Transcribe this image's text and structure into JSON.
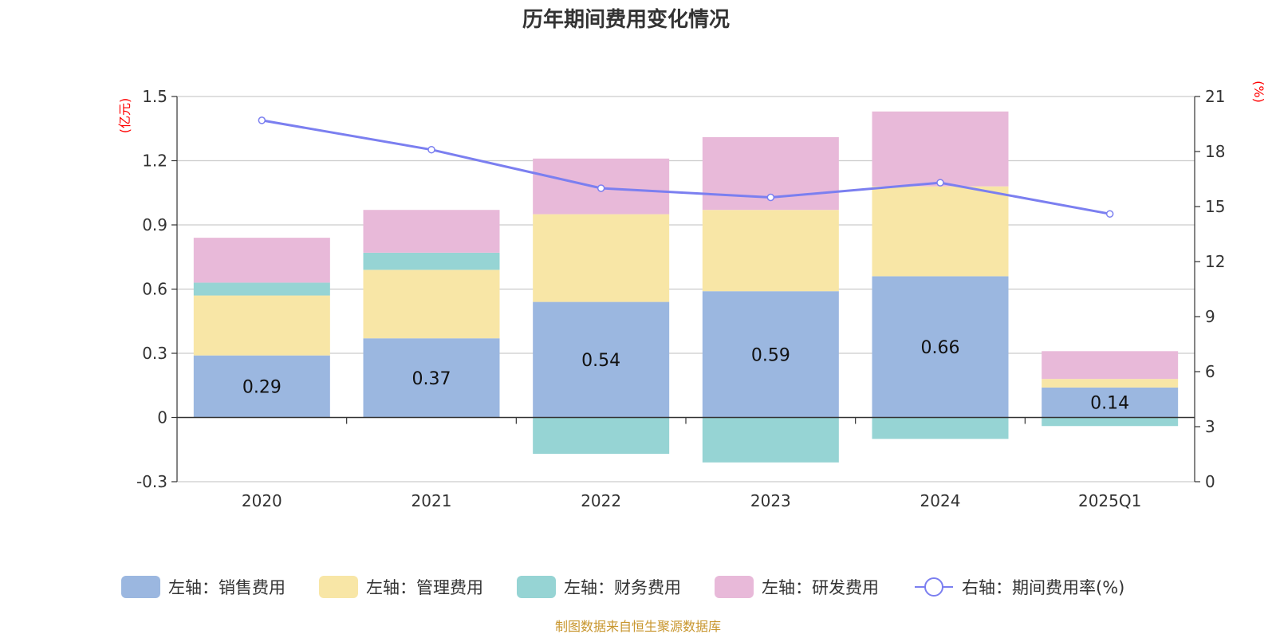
{
  "chart_data": {
    "type": "bar",
    "title": "历年期间费用变化情况",
    "categories": [
      "2020",
      "2021",
      "2022",
      "2023",
      "2024",
      "2025Q1"
    ],
    "series": [
      {
        "name": "左轴：销售费用",
        "axis": "left",
        "kind": "stacked-bar",
        "color": "#9bb7e0",
        "values": [
          0.29,
          0.37,
          0.54,
          0.59,
          0.66,
          0.14
        ]
      },
      {
        "name": "左轴：管理费用",
        "axis": "left",
        "kind": "stacked-bar",
        "color": "#f8e6a6",
        "values": [
          0.28,
          0.32,
          0.41,
          0.38,
          0.42,
          0.04
        ]
      },
      {
        "name": "左轴：财务费用",
        "axis": "left",
        "kind": "stacked-bar",
        "color": "#96d4d4",
        "values": [
          0.06,
          0.08,
          -0.17,
          -0.21,
          -0.1,
          -0.04
        ]
      },
      {
        "name": "左轴：研发费用",
        "axis": "left",
        "kind": "stacked-bar",
        "color": "#e8b9d9",
        "values": [
          0.21,
          0.2,
          0.26,
          0.34,
          0.35,
          0.13
        ]
      },
      {
        "name": "右轴：期间费用率(%)",
        "axis": "right",
        "kind": "line",
        "color": "#7b7ff0",
        "values": [
          19.7,
          18.1,
          16.0,
          15.5,
          16.3,
          14.6
        ]
      }
    ],
    "data_labels": [
      "0.29",
      "0.37",
      "0.54",
      "0.59",
      "0.66",
      "0.14"
    ],
    "left_axis": {
      "unit": "(亿元)",
      "ylim": [
        -0.3,
        1.5
      ],
      "ticks": [
        -0.3,
        0,
        0.3,
        0.6,
        0.9,
        1.2,
        1.5
      ],
      "tick_labels": [
        "-0.3",
        "0",
        "0.3",
        "0.6",
        "0.9",
        "1.2",
        "1.5"
      ]
    },
    "right_axis": {
      "unit": "(%)",
      "ylim": [
        0,
        21
      ],
      "ticks": [
        0,
        3,
        6,
        9,
        12,
        15,
        18,
        21
      ],
      "tick_labels": [
        "0",
        "3",
        "6",
        "9",
        "12",
        "15",
        "18",
        "21"
      ]
    },
    "grid": true,
    "legend_position": "bottom"
  },
  "source": "制图数据来自恒生聚源数据库"
}
